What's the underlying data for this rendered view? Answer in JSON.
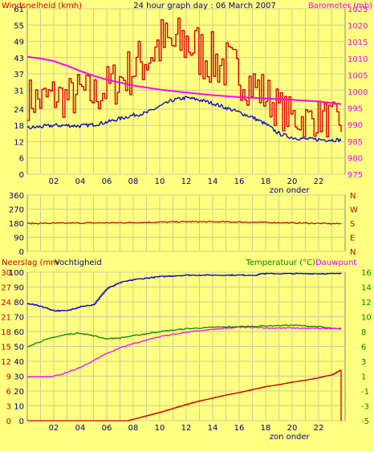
{
  "chart_data": [
    {
      "type": "line",
      "title": "24 hour graph day : 06 March 2007",
      "left_axis_label": "Windsnelheid (kmh)",
      "right_axis_label": "Barometer (mb)",
      "left_ticks": [
        0,
        6,
        12,
        18,
        24,
        31,
        37,
        43,
        49,
        55,
        61
      ],
      "right_ticks": [
        975,
        980,
        985,
        990,
        995,
        1000,
        1005,
        1010,
        1015,
        1020,
        1025
      ],
      "x_ticks": [
        "02",
        "04",
        "06",
        "08",
        "10",
        "12",
        "14",
        "16",
        "18",
        "20",
        "22"
      ],
      "x_note": "zon onder",
      "series": [
        {
          "name": "Windsnelheid",
          "color": "#dd0000",
          "axis": "left",
          "style": "gust",
          "x": [
            0,
            1,
            2,
            3,
            4,
            5,
            6,
            7,
            8,
            9,
            10,
            11,
            12,
            13,
            14,
            15,
            16,
            17,
            18,
            19,
            20,
            21,
            22,
            23.7
          ],
          "values": [
            28,
            27,
            29,
            28,
            30,
            29,
            32,
            35,
            39,
            43,
            48,
            47,
            49,
            45,
            42,
            40,
            37,
            33,
            29,
            24,
            21,
            20,
            21,
            19
          ]
        },
        {
          "color": "#0000cc",
          "axis": "left",
          "style": "noisy",
          "x": [
            0,
            1,
            2,
            3,
            4,
            5,
            6,
            7,
            8,
            9,
            10,
            11,
            12,
            13,
            14,
            15,
            16,
            17,
            18,
            19,
            20,
            21,
            22,
            23.7
          ],
          "values": [
            17,
            17.5,
            18,
            18,
            17.8,
            18.3,
            19.2,
            20.5,
            21.8,
            22.6,
            25,
            27.3,
            28.2,
            27.4,
            26.2,
            24.5,
            22.8,
            21,
            18.5,
            15,
            13.5,
            13,
            12.8,
            12.6
          ]
        },
        {
          "color": "#ff00ff",
          "axis": "right",
          "style": "smooth",
          "x": [
            0,
            1,
            2,
            3,
            4,
            5,
            6,
            7,
            8,
            10,
            12,
            14,
            16,
            18,
            20,
            22,
            23.7
          ],
          "values": [
            1010.5,
            1010,
            1009.2,
            1007.8,
            1006.2,
            1004.8,
            1003.6,
            1002.7,
            1001.8,
            1000.6,
            999.7,
            998.9,
            998.3,
            997.9,
            997.5,
            997.0,
            996.2
          ]
        }
      ]
    },
    {
      "type": "line",
      "left_ticks": [
        0,
        90,
        180,
        270,
        360
      ],
      "right_labels": [
        "N",
        "W",
        "S",
        "E",
        "N"
      ],
      "series": [
        {
          "color": "#cc0000",
          "style": "noisy",
          "x": [
            0,
            4,
            8,
            12,
            16,
            20,
            23.7
          ],
          "values": [
            178,
            181,
            184,
            190,
            188,
            182,
            176
          ]
        }
      ]
    },
    {
      "type": "line",
      "left_axis_label": "Neerslag (mm",
      "left_axis_label_2": "Vochtigheid",
      "right_axis_label": "Temperatuur (°C)",
      "right_axis_label_2": "Dauwpunt",
      "left_ticks": [
        0,
        3,
        6,
        9,
        12,
        15,
        18,
        21,
        24,
        27,
        30
      ],
      "left_ticks_2": [
        0,
        10,
        20,
        30,
        40,
        50,
        60,
        70,
        80,
        90,
        100
      ],
      "right_ticks": [
        -5,
        -3,
        -1,
        1,
        3,
        6,
        8,
        10,
        12,
        14,
        16
      ],
      "x_ticks": [
        "02",
        "04",
        "06",
        "08",
        "10",
        "12",
        "14",
        "16",
        "18",
        "20",
        "22"
      ],
      "x_note": "zon onder",
      "series": [
        {
          "name": "Vochtigheid",
          "color": "#0000cc",
          "axis": "left_percent",
          "style": "step",
          "x": [
            0,
            1,
            2,
            3,
            4,
            5,
            5.5,
            6,
            7,
            8,
            10,
            12,
            14,
            16,
            17.4,
            17.5,
            20,
            23.7
          ],
          "values": [
            79,
            77,
            74,
            74,
            77,
            78,
            84,
            89,
            93,
            95,
            97,
            98,
            98,
            98,
            98,
            99,
            99,
            99
          ]
        },
        {
          "color": "#008800",
          "axis": "right_temp",
          "style": "smooth",
          "x": [
            0,
            1,
            2,
            3,
            4,
            5,
            6,
            7,
            8,
            10,
            12,
            14,
            16,
            18,
            20,
            22,
            23.7
          ],
          "values": [
            5.5,
            6.2,
            6.8,
            7.2,
            7.4,
            7.0,
            6.6,
            6.7,
            7.0,
            7.6,
            8.0,
            8.2,
            8.3,
            8.4,
            8.5,
            8.3,
            7.9
          ]
        },
        {
          "name": "Dauwpunt",
          "color": "#ff00ff",
          "axis": "right_temp",
          "style": "smooth",
          "x": [
            0,
            1,
            2,
            3,
            4,
            5,
            6,
            7,
            8,
            10,
            12,
            14,
            16,
            17.5,
            18,
            20,
            23.7
          ],
          "values": [
            1.2,
            1.2,
            1.3,
            1.8,
            2.5,
            3.5,
            4.5,
            5.3,
            5.9,
            6.9,
            7.5,
            7.9,
            8.2,
            8.2,
            8.1,
            8.1,
            8.0
          ]
        },
        {
          "name": "Neerslag",
          "color": "#cc0000",
          "axis": "left_mm",
          "style": "step",
          "x": [
            0,
            7.5,
            8,
            9,
            10,
            11,
            12,
            13,
            14,
            15,
            16,
            17,
            18,
            19,
            20,
            21,
            22,
            23,
            23.6,
            23.7
          ],
          "values": [
            0,
            0,
            0.3,
            1.0,
            1.7,
            2.5,
            3.3,
            4.0,
            4.6,
            5.2,
            5.7,
            6.3,
            6.9,
            7.3,
            7.8,
            8.2,
            8.7,
            9.3,
            10.2,
            0
          ]
        }
      ]
    }
  ]
}
